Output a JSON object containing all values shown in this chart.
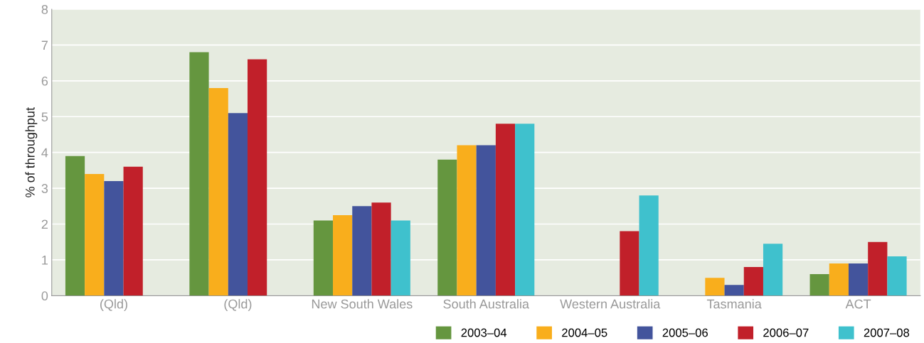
{
  "chart_data": {
    "type": "bar",
    "ylabel": "% of throughput",
    "categories": [
      "(Qld)",
      "(Qld)",
      "New South Wales",
      "South Australia",
      "Western Australia",
      "Tasmania",
      "ACT"
    ],
    "series": [
      {
        "name": "2003–04",
        "color": "#65963f",
        "values": [
          3.9,
          6.8,
          2.1,
          3.8,
          null,
          null,
          0.6
        ]
      },
      {
        "name": "2004–05",
        "color": "#f9ae1c",
        "values": [
          3.4,
          5.8,
          2.25,
          4.2,
          null,
          0.5,
          0.9
        ]
      },
      {
        "name": "2005–06",
        "color": "#43549c",
        "values": [
          3.2,
          5.1,
          2.5,
          4.2,
          null,
          0.3,
          0.9
        ]
      },
      {
        "name": "2006–07",
        "color": "#c1202a",
        "values": [
          3.6,
          6.6,
          2.6,
          4.8,
          1.8,
          0.8,
          1.5
        ]
      },
      {
        "name": "2007–08",
        "color": "#3fc1cd",
        "values": [
          null,
          null,
          2.1,
          4.8,
          2.8,
          1.45,
          1.1
        ]
      }
    ],
    "ylim": [
      0,
      8
    ],
    "yticks": [
      0,
      1,
      2,
      3,
      4,
      5,
      6,
      7,
      8
    ],
    "grid": "y",
    "legend": "bottom right"
  }
}
